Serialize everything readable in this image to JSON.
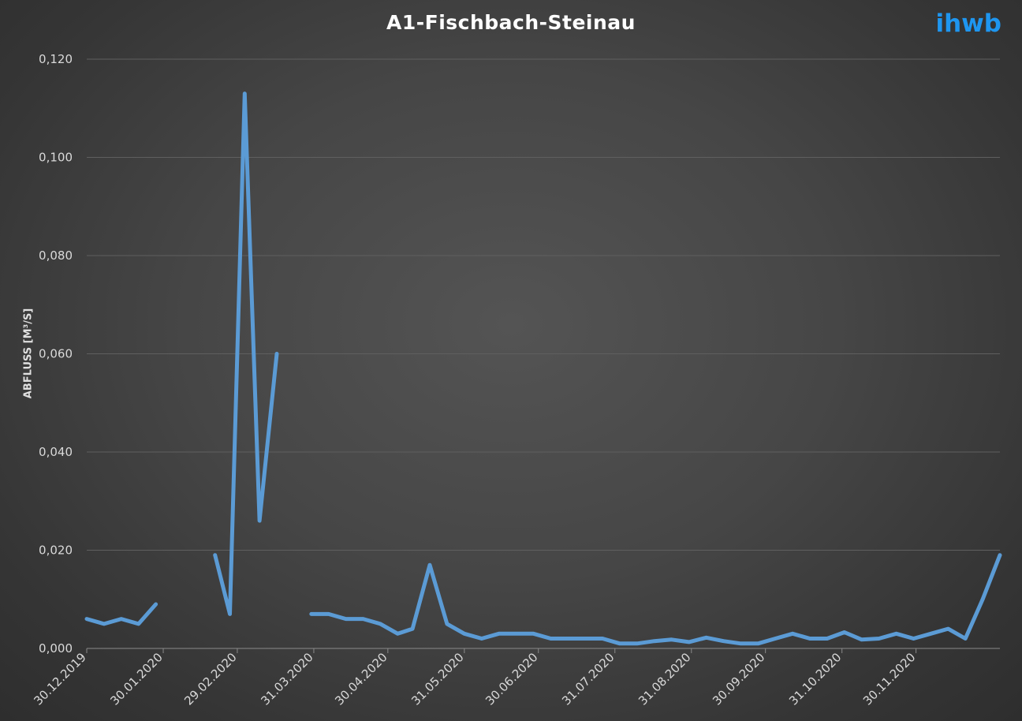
{
  "colors": {
    "series": "#5b9bd5",
    "brand": "#1e96f0",
    "grid": "#5f5f5f"
  },
  "logo": "ihwb",
  "chart_data": {
    "type": "line",
    "title": "A1-Fischbach-Steinau",
    "xlabel": "",
    "ylabel": "ABFLUSS [M³/S]",
    "ylim": [
      0,
      0.12
    ],
    "y_ticks": [
      "0,000",
      "0,020",
      "0,040",
      "0,060",
      "0,080",
      "0,100",
      "0,120"
    ],
    "x_ticks": [
      "30.12.2019",
      "30.01.2020",
      "29.02.2020",
      "31.03.2020",
      "30.04.2020",
      "31.05.2020",
      "30.06.2020",
      "31.07.2020",
      "31.08.2020",
      "30.09.2020",
      "31.10.2020",
      "30.11.2020"
    ],
    "grid": true,
    "legend": "none",
    "series": [
      {
        "points": [
          [
            "2019-12-30",
            0.006
          ],
          [
            "2020-01-06",
            0.005
          ],
          [
            "2020-01-13",
            0.006
          ],
          [
            "2020-01-20",
            0.005
          ],
          [
            "2020-01-27",
            0.009
          ],
          [
            "2020-02-09",
            null
          ],
          [
            "2020-02-20",
            0.019
          ],
          [
            "2020-02-26",
            0.007
          ],
          [
            "2020-03-03",
            0.113
          ],
          [
            "2020-03-09",
            0.026
          ],
          [
            "2020-03-16",
            0.06
          ],
          [
            "2020-03-23",
            null
          ],
          [
            "2020-03-30",
            0.007
          ],
          [
            "2020-04-06",
            0.007
          ],
          [
            "2020-04-13",
            0.006
          ],
          [
            "2020-04-20",
            0.006
          ],
          [
            "2020-04-27",
            0.005
          ],
          [
            "2020-05-04",
            0.003
          ],
          [
            "2020-05-10",
            0.004
          ],
          [
            "2020-05-17",
            0.017
          ],
          [
            "2020-05-24",
            0.005
          ],
          [
            "2020-05-31",
            0.003
          ],
          [
            "2020-06-07",
            0.002
          ],
          [
            "2020-06-14",
            0.003
          ],
          [
            "2020-06-21",
            0.003
          ],
          [
            "2020-06-28",
            0.003
          ],
          [
            "2020-07-05",
            0.002
          ],
          [
            "2020-07-12",
            0.002
          ],
          [
            "2020-07-19",
            0.002
          ],
          [
            "2020-07-26",
            0.002
          ],
          [
            "2020-08-02",
            0.001
          ],
          [
            "2020-08-09",
            0.001
          ],
          [
            "2020-08-16",
            0.0015
          ],
          [
            "2020-08-23",
            0.0018
          ],
          [
            "2020-08-30",
            0.0013
          ],
          [
            "2020-09-06",
            0.0022
          ],
          [
            "2020-09-13",
            0.0015
          ],
          [
            "2020-09-20",
            0.001
          ],
          [
            "2020-09-27",
            0.001
          ],
          [
            "2020-10-04",
            0.002
          ],
          [
            "2020-10-11",
            0.003
          ],
          [
            "2020-10-18",
            0.002
          ],
          [
            "2020-10-25",
            0.002
          ],
          [
            "2020-11-01",
            0.0033
          ],
          [
            "2020-11-08",
            0.0018
          ],
          [
            "2020-11-15",
            0.002
          ],
          [
            "2020-11-22",
            0.003
          ],
          [
            "2020-11-29",
            0.002
          ],
          [
            "2020-12-06",
            0.003
          ],
          [
            "2020-12-13",
            0.004
          ],
          [
            "2020-12-20",
            0.002
          ],
          [
            "2020-12-27",
            0.01
          ],
          [
            "2021-01-03",
            0.019
          ]
        ]
      }
    ]
  }
}
